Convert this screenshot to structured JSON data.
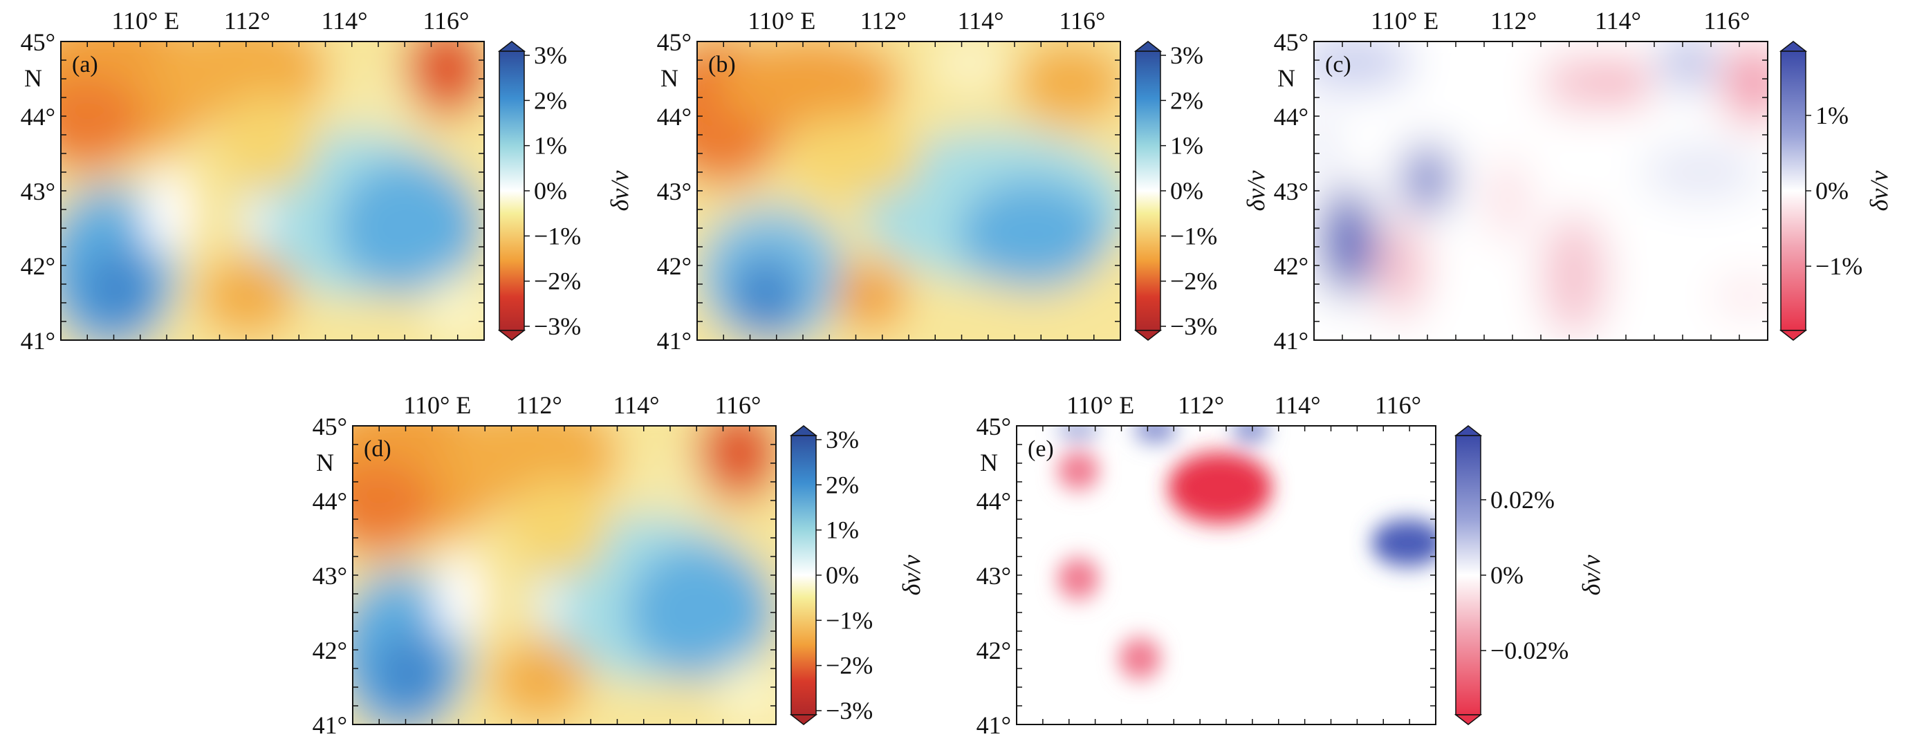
{
  "figure": {
    "panels": [
      {
        "id": "a",
        "label": "(a)",
        "x_ticks": [
          "110° E",
          "112°",
          "114°",
          "116°"
        ],
        "y_ticks": [
          "45°",
          "44°",
          "43°",
          "42°",
          "41°"
        ],
        "y_unit": "N",
        "colorbar": {
          "title": "δv/v",
          "ticks": [
            "3%",
            "2%",
            "1%",
            "0%",
            "−1%",
            "−2%",
            "−3%"
          ],
          "range": [
            -3,
            3
          ],
          "scheme": "diverging-blue-white-yellow-red"
        }
      },
      {
        "id": "b",
        "label": "(b)",
        "x_ticks": [
          "110° E",
          "112°",
          "114°",
          "116°"
        ],
        "y_ticks": [
          "45°",
          "44°",
          "43°",
          "42°",
          "41°"
        ],
        "y_unit": "N",
        "colorbar": {
          "title": "δv/v",
          "ticks": [
            "3%",
            "2%",
            "1%",
            "0%",
            "−1%",
            "−2%",
            "−3%"
          ],
          "range": [
            -3,
            3
          ],
          "scheme": "diverging-blue-white-yellow-red"
        }
      },
      {
        "id": "c",
        "label": "(c)",
        "x_ticks": [
          "110° E",
          "112°",
          "114°",
          "116°"
        ],
        "y_ticks": [
          "45°",
          "44°",
          "43°",
          "42°",
          "41°"
        ],
        "y_unit": "N",
        "colorbar": {
          "title": "δv/v",
          "ticks": [
            "1%",
            "0%",
            "−1%"
          ],
          "range": [
            -1.6,
            1.6
          ],
          "scheme": "diverging-blue-white-red"
        }
      },
      {
        "id": "d",
        "label": "(d)",
        "x_ticks": [
          "110° E",
          "112°",
          "114°",
          "116°"
        ],
        "y_ticks": [
          "45°",
          "44°",
          "43°",
          "42°",
          "41°"
        ],
        "y_unit": "N",
        "colorbar": {
          "title": "δv/v",
          "ticks": [
            "3%",
            "2%",
            "1%",
            "0%",
            "−1%",
            "−2%",
            "−3%"
          ],
          "range": [
            -3,
            3
          ],
          "scheme": "diverging-blue-white-yellow-red"
        }
      },
      {
        "id": "e",
        "label": "(e)",
        "x_ticks": [
          "110° E",
          "112°",
          "114°",
          "116°"
        ],
        "y_ticks": [
          "45°",
          "44°",
          "43°",
          "42°",
          "41°"
        ],
        "y_unit": "N",
        "colorbar": {
          "title": "δv/v",
          "ticks": [
            "0.02%",
            "0%",
            "−0.02%"
          ],
          "range": [
            -0.03,
            0.03
          ],
          "scheme": "diverging-blue-white-red"
        }
      }
    ],
    "colors": {
      "deep_blue": "#2f4d9c",
      "mid_blue": "#3d8fd1",
      "light_blue": "#9ad7e0",
      "white": "#ffffff",
      "yellow": "#f6ef9a",
      "orange": "#f2a03a",
      "red": "#d83a2a",
      "dark_red": "#b0282a",
      "purple_blue": "#4a5bb8",
      "pink_red": "#e8324a"
    }
  }
}
